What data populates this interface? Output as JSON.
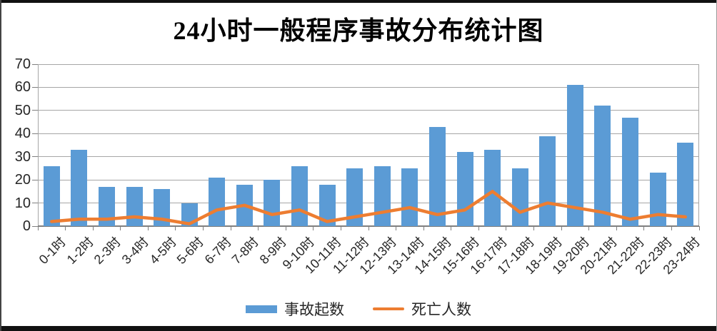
{
  "page": {
    "title": "24小时一般程序事故分布统计图"
  },
  "colors": {
    "bar": "#5B9BD5",
    "line": "#ED7D31",
    "gridline": "#A6A6A6",
    "axis_line": "#7F7F7F",
    "text": "#262626",
    "frame": "#111111"
  },
  "legend": {
    "accidents_label": "事故起数",
    "deaths_label": "死亡人数"
  },
  "chart_data": {
    "type": "bar",
    "title": "24小时一般程序事故分布统计图",
    "xlabel": "",
    "ylabel": "",
    "ylim": [
      0,
      70
    ],
    "ytick_interval": 10,
    "yticks": [
      70,
      60,
      50,
      40,
      30,
      20,
      10,
      0
    ],
    "grid": true,
    "legend_position": "bottom",
    "categories": [
      "0-1时",
      "1-2时",
      "2-3时",
      "3-4时",
      "4-5时",
      "5-6时",
      "6-7时",
      "7-8时",
      "8-9时",
      "9-10时",
      "10-11时",
      "11-12时",
      "12-13时",
      "13-14时",
      "14-15时",
      "15-16时",
      "16-17时",
      "17-18时",
      "18-19时",
      "19-20时",
      "20-21时",
      "21-22时",
      "22-23时",
      "23-24时"
    ],
    "series": [
      {
        "name": "事故起数",
        "type": "bar",
        "values": [
          26,
          33,
          17,
          17,
          16,
          10,
          21,
          18,
          20,
          26,
          18,
          25,
          26,
          25,
          43,
          32,
          33,
          25,
          39,
          61,
          52,
          47,
          23,
          36
        ]
      },
      {
        "name": "死亡人数",
        "type": "line",
        "values": [
          2,
          3,
          3,
          4,
          3,
          1,
          7,
          9,
          5,
          7,
          2,
          4,
          6,
          8,
          5,
          7,
          15,
          6,
          10,
          8,
          6,
          3,
          5,
          4
        ]
      }
    ]
  }
}
